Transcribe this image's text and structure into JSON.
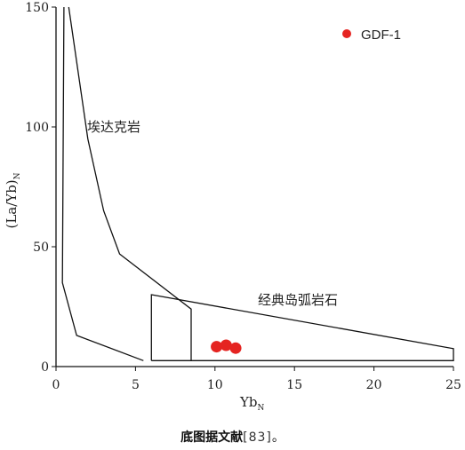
{
  "chart_data": {
    "type": "scatter",
    "xlabel": "Yb",
    "xlabel_sub": "N",
    "ylabel": "(La/Yb)",
    "ylabel_sub": "N",
    "xlim": [
      0,
      25
    ],
    "ylim": [
      0,
      150
    ],
    "xticks": [
      0,
      5,
      10,
      15,
      20,
      25
    ],
    "yticks": [
      0,
      50,
      100,
      150
    ],
    "grid": false,
    "legend": {
      "position": "top-right",
      "entries": [
        {
          "label": "GDF-1",
          "color": "#e52421"
        }
      ]
    },
    "series": [
      {
        "name": "GDF-1",
        "color": "#e52421",
        "x": [
          10.1,
          10.7,
          11.3
        ],
        "y": [
          8.3,
          8.9,
          7.7
        ]
      }
    ],
    "regions": [
      {
        "label": "埃达克岩",
        "boundary_outer": [
          [
            0.8,
            150
          ],
          [
            2.0,
            95
          ],
          [
            3.0,
            65
          ],
          [
            4.0,
            47
          ],
          [
            8.5,
            24
          ],
          [
            8.5,
            2.5
          ]
        ],
        "boundary_inner": [
          [
            0.5,
            150
          ],
          [
            0.4,
            35
          ],
          [
            1.3,
            13
          ],
          [
            5.5,
            2.5
          ]
        ]
      },
      {
        "label": "经典岛弧岩石",
        "boundary": [
          [
            6.0,
            2.5
          ],
          [
            6.0,
            30
          ],
          [
            25,
            7.5
          ],
          [
            25,
            2.5
          ],
          [
            6.0,
            2.5
          ]
        ]
      }
    ]
  },
  "caption": {
    "bold": "底图据文献",
    "ref": "[83]",
    "end": "。"
  }
}
